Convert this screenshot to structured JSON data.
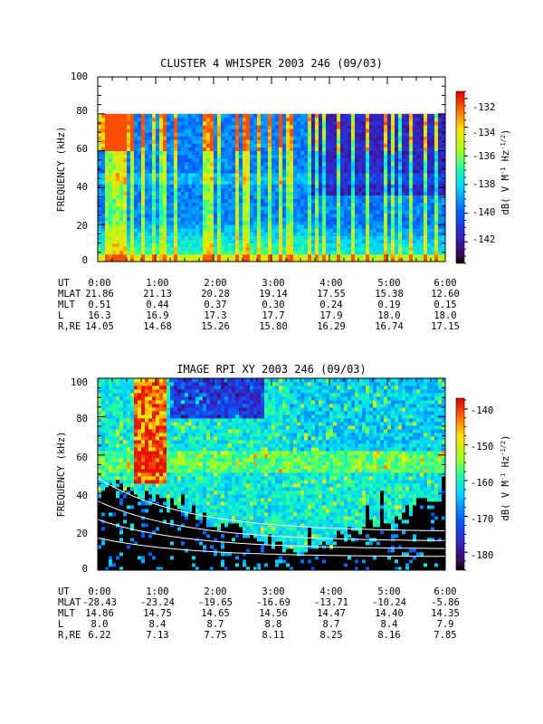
{
  "chart_data": [
    {
      "type": "heatmap",
      "title": "CLUSTER 4 WHISPER 2003 246 (09/03)",
      "ylabel": "FREQUENCY (kHz)",
      "ylim": [
        0,
        100
      ],
      "yticks": [
        "0",
        "20",
        "40",
        "60",
        "80",
        "100"
      ],
      "data_ylim": [
        0,
        80
      ],
      "xlim": [
        "0:00",
        "6:00"
      ],
      "colorbar": {
        "label_parts": [
          "dB( V M",
          "-1",
          " Hz",
          "-1/2",
          ")"
        ],
        "ticks": [
          "-132",
          "-134",
          "-136",
          "-138",
          "-140",
          "-142"
        ],
        "tick_values": [
          -132,
          -134,
          -136,
          -138,
          -140,
          -142
        ],
        "range": [
          -143.5,
          -131.5
        ]
      },
      "ephemeris": {
        "rows": [
          "UT",
          "MLAT",
          "MLT",
          "L",
          "R,RE"
        ],
        "columns": [
          [
            "0:00",
            "21.86",
            "0.51",
            "16.3",
            "14.05"
          ],
          [
            "1:00",
            "21.13",
            "0.44",
            "16.9",
            "14.68"
          ],
          [
            "2:00",
            "20.28",
            "0.37",
            "17.3",
            "15.26"
          ],
          [
            "3:00",
            "19.14",
            "0.30",
            "17.7",
            "15.80"
          ],
          [
            "4:00",
            "17.55",
            "0.24",
            "17.9",
            "16.29"
          ],
          [
            "5:00",
            "15.38",
            "0.19",
            "18.0",
            "16.74"
          ],
          [
            "6:00",
            "12.60",
            "0.15",
            "18.0",
            "17.15"
          ]
        ]
      }
    },
    {
      "type": "heatmap",
      "title": "IMAGE RPI XY 2003 246 (09/03)",
      "ylabel": "FREQUENCY (kHz)",
      "ylim": [
        0,
        100
      ],
      "yticks": [
        "0",
        "20",
        "40",
        "60",
        "80",
        "100"
      ],
      "xlim": [
        "0:00",
        "6:00"
      ],
      "colorbar": {
        "label_parts": [
          "dB( V M",
          "-1",
          " Hz",
          "-1/2",
          ")"
        ],
        "ticks": [
          "-140",
          "-150",
          "-160",
          "-170",
          "-180"
        ],
        "tick_values": [
          -140,
          -150,
          -160,
          -170,
          -180
        ],
        "range": [
          -185,
          -137
        ]
      },
      "ephemeris": {
        "rows": [
          "UT",
          "MLAT",
          "MLT",
          "L",
          "R,RE"
        ],
        "columns": [
          [
            "0:00",
            "-28.43",
            "14.86",
            "8.0",
            "6.22"
          ],
          [
            "1:00",
            "-23.24",
            "14.75",
            "8.4",
            "7.13"
          ],
          [
            "2:00",
            "-19.65",
            "14.65",
            "8.7",
            "7.75"
          ],
          [
            "3:00",
            "-16.69",
            "14.56",
            "8.8",
            "8.11"
          ],
          [
            "4:00",
            "-13.71",
            "14.47",
            "8.7",
            "8.25"
          ],
          [
            "5:00",
            "-10.24",
            "14.40",
            "8.4",
            "8.16"
          ],
          [
            "6:00",
            "-5.86",
            "14.35",
            "7.9",
            "7.85"
          ]
        ]
      }
    }
  ]
}
